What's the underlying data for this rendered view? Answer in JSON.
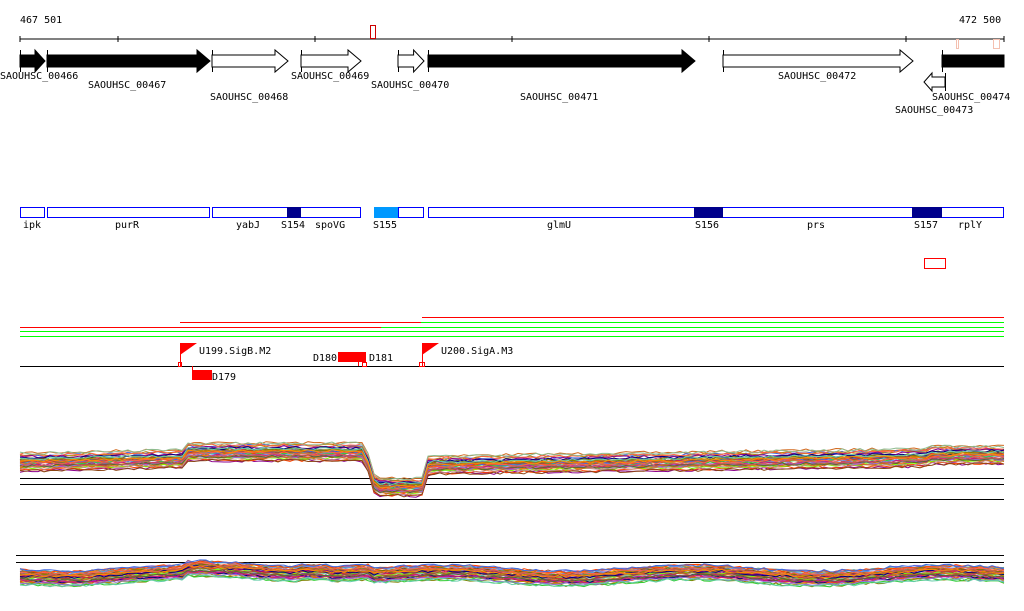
{
  "ruler": {
    "start_label": "467 501",
    "end_label": "472 500"
  },
  "genes": [
    {
      "name": "SAOUHSC_00466",
      "strand": "+",
      "fill": "black"
    },
    {
      "name": "SAOUHSC_00467",
      "strand": "+",
      "fill": "black"
    },
    {
      "name": "SAOUHSC_00468",
      "strand": "+",
      "fill": "white"
    },
    {
      "name": "SAOUHSC_00469",
      "strand": "+",
      "fill": "white"
    },
    {
      "name": "SAOUHSC_00470",
      "strand": "+",
      "fill": "white"
    },
    {
      "name": "SAOUHSC_00471",
      "strand": "+",
      "fill": "black"
    },
    {
      "name": "SAOUHSC_00472",
      "strand": "+",
      "fill": "white"
    },
    {
      "name": "SAOUHSC_00473",
      "strand": "-",
      "fill": "white"
    },
    {
      "name": "SAOUHSC_00474",
      "strand": "+",
      "fill": "black"
    }
  ],
  "features": {
    "labels": [
      "ipk",
      "purR",
      "yabJ",
      "S154",
      "spoVG",
      "S155",
      "glmU",
      "S156",
      "prs",
      "S157",
      "rplY"
    ]
  },
  "sites": {
    "flags": [
      "U199.SigB.M2",
      "U200.SigA.M3"
    ],
    "blocks": [
      "D179",
      "D180",
      "D181"
    ]
  },
  "colors": {
    "feature_border": "#0000ff",
    "srna_dark": "#00008b",
    "srna_light": "#0099ff",
    "site_red": "#ff0000",
    "green": "#00ff00",
    "series": [
      "#d2691e",
      "#8b008b",
      "#32cd32",
      "#ff4500",
      "#4169e1",
      "#b8860b",
      "#c71585",
      "#808000",
      "#a0522d",
      "#9370db",
      "#ff6347",
      "#556b2f",
      "#000080",
      "#cd5c5c",
      "#66cdaa",
      "#ff8c00",
      "#8fbc8f",
      "#9932cc",
      "#7cfc00",
      "#dc143c",
      "#5f9ea0",
      "#bc8f8f",
      "#6495ed",
      "#8b4513"
    ]
  }
}
